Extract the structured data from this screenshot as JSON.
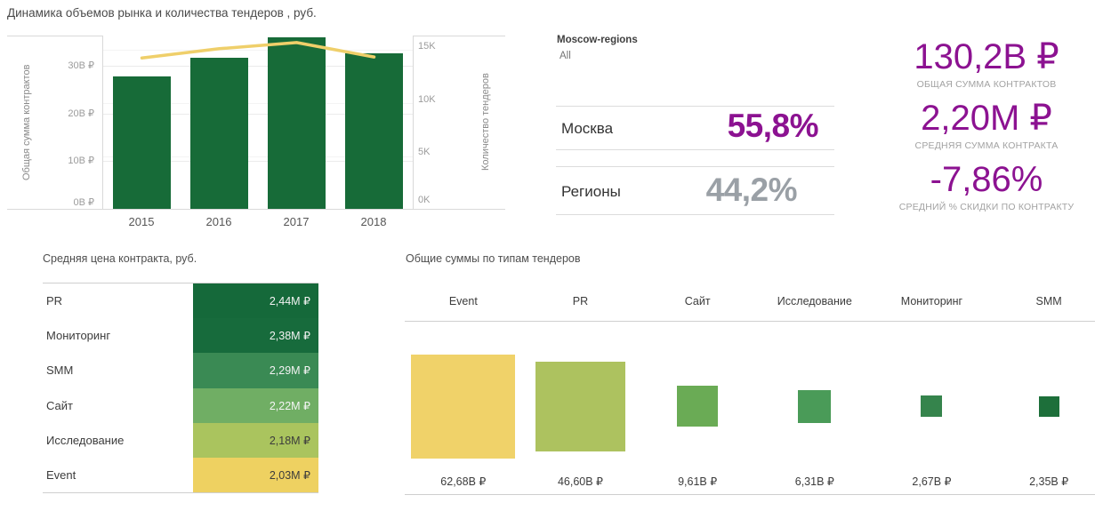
{
  "colors": {
    "bar_green": "#176b38",
    "line_yellow": "#efcf6a",
    "purple": "#8c1291",
    "gray_number": "#9aa0a6",
    "border": "#d9d9d9"
  },
  "market": {
    "title": "Динамика объемов рынка и количества тендеров , руб.",
    "left_axis_label": "Общая сумма контрактов",
    "right_axis_label": "Количество тендеров",
    "left_ticks": [
      "30B ₽",
      "20B ₽",
      "10B ₽",
      "0B ₽"
    ],
    "right_ticks": [
      "15K",
      "10K",
      "5K",
      "0K"
    ],
    "categories": [
      "2015",
      "2016",
      "2017",
      "2018"
    ],
    "bar_values": [
      27.8,
      31.7,
      36.0,
      32.7
    ],
    "line_values": [
      14.2,
      15.1,
      15.7,
      14.3
    ],
    "bar_color": "#176b38",
    "line_color": "#efcf6a"
  },
  "filter": {
    "label": "Moscow-regions",
    "value": "All"
  },
  "share": {
    "rows": [
      {
        "label": "Москва",
        "value": "55,8%",
        "color": "#8c1291"
      },
      {
        "label": "Регионы",
        "value": "44,2%",
        "color": "#9aa0a6"
      }
    ]
  },
  "kpis": [
    {
      "value": "130,2B ₽",
      "caption": "ОБЩАЯ СУММА КОНТРАКТОВ"
    },
    {
      "value": "2,20M ₽",
      "caption": "СРЕДНЯЯ СУММА КОНТРАКТА"
    },
    {
      "value": "-7,86%",
      "caption": "СРЕДНИЙ % СКИДКИ ПО КОНТРАКТУ"
    }
  ],
  "avg_price": {
    "title": "Средняя цена контракта, руб.",
    "rows": [
      {
        "label": "PR",
        "value_label": "2,44M ₽",
        "color": "#15693a",
        "text_color": "#f3f3f3"
      },
      {
        "label": "Мониторинг",
        "value_label": "2,38M ₽",
        "color": "#176b3c",
        "text_color": "#f3f3f3"
      },
      {
        "label": "SMM",
        "value_label": "2,29M ₽",
        "color": "#3a8a54",
        "text_color": "#f3f3f3"
      },
      {
        "label": "Сайт",
        "value_label": "2,22M ₽",
        "color": "#70ae64",
        "text_color": "#f5f5f5"
      },
      {
        "label": "Исследование",
        "value_label": "2,18M ₽",
        "color": "#aac45e",
        "text_color": "#3c3c3c"
      },
      {
        "label": "Event",
        "value_label": "2,03M ₽",
        "color": "#eed161",
        "text_color": "#3c3c3c"
      }
    ]
  },
  "totals": {
    "title": "Общие суммы по типам тендеров",
    "columns": [
      {
        "label": "Event",
        "value": 62.68,
        "value_label": "62,68B ₽",
        "color": "#f0d269"
      },
      {
        "label": "PR",
        "value": 46.6,
        "value_label": "46,60B ₽",
        "color": "#adc25f"
      },
      {
        "label": "Сайт",
        "value": 9.61,
        "value_label": "9,61B ₽",
        "color": "#6aab55"
      },
      {
        "label": "Исследование",
        "value": 6.31,
        "value_label": "6,31B ₽",
        "color": "#4a9b58"
      },
      {
        "label": "Мониторинг",
        "value": 2.67,
        "value_label": "2,67B ₽",
        "color": "#35844c"
      },
      {
        "label": "SMM",
        "value": 2.35,
        "value_label": "2,35B ₽",
        "color": "#1d6f3a"
      }
    ]
  },
  "chart_data": [
    {
      "type": "bar",
      "title": "Динамика объемов рынка и количества тендеров , руб.",
      "categories": [
        "2015",
        "2016",
        "2017",
        "2018"
      ],
      "series": [
        {
          "name": "Общая сумма контрактов (B ₽)",
          "type": "bar",
          "values": [
            27.8,
            31.7,
            36.0,
            32.7
          ],
          "axis": "left",
          "ylim": [
            0,
            36.3
          ],
          "ticks": [
            0,
            10,
            20,
            30
          ],
          "color": "#176b38"
        },
        {
          "name": "Количество тендеров (K)",
          "type": "line",
          "values": [
            14.2,
            15.1,
            15.7,
            14.3
          ],
          "axis": "right",
          "ylim": [
            0,
            16.4
          ],
          "ticks": [
            0,
            5,
            10,
            15
          ],
          "color": "#efcf6a"
        }
      ],
      "xlabel": "",
      "ylabel": "Общая сумма контрактов",
      "ylabel_right": "Количество тендеров",
      "grid": true,
      "legend_position": "none"
    },
    {
      "type": "table",
      "title": "Средняя цена контракта, руб.",
      "categories": [
        "PR",
        "Мониторинг",
        "SMM",
        "Сайт",
        "Исследование",
        "Event"
      ],
      "values": [
        2.44,
        2.38,
        2.29,
        2.22,
        2.18,
        2.03
      ],
      "unit": "M ₽",
      "note": "single-column heatmap, green-to-yellow by value"
    },
    {
      "type": "bar",
      "title": "Общие суммы по типам тендеров",
      "categories": [
        "Event",
        "PR",
        "Сайт",
        "Исследование",
        "Мониторинг",
        "SMM"
      ],
      "values": [
        62.68,
        46.6,
        9.61,
        6.31,
        2.67,
        2.35
      ],
      "unit": "B ₽",
      "note": "sized squares, area proportional to value"
    }
  ]
}
